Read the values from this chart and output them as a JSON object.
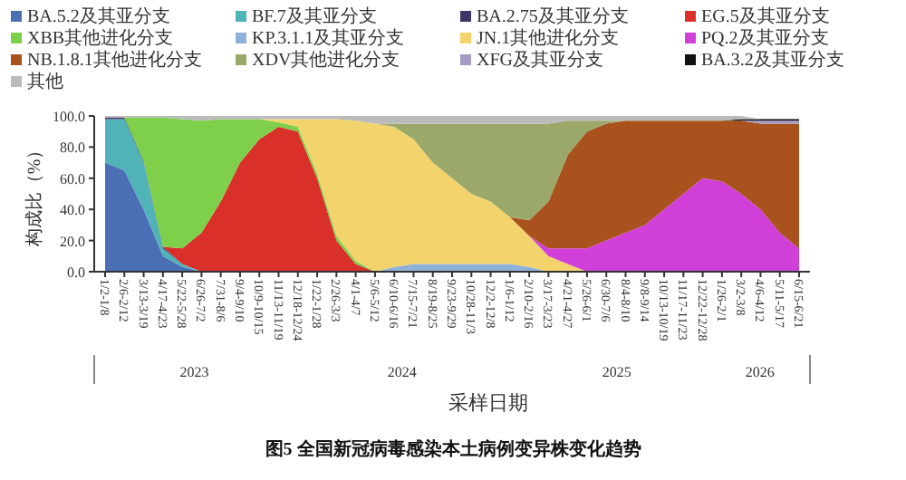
{
  "chart_data": {
    "type": "area",
    "stacked": true,
    "title": "图5 全国新冠病毒感染本土病例变异株变化趋势",
    "xlabel": "采样日期",
    "ylabel": "构成比（%）",
    "categories": [
      "1/2-1/8",
      "2/6-2/12",
      "3/13-3/19",
      "4/17-4/23",
      "5/22-5/28",
      "6/26-7/2",
      "7/31-8/6",
      "9/4-9/10",
      "10/9-10/15",
      "11/13-11/19",
      "12/18-12/24",
      "1/22-1/28",
      "2/26-3/3",
      "4/1-4/7",
      "5/6-5/12",
      "6/10-6/16",
      "7/15-7/21",
      "8/19-8/25",
      "9/23-9/29",
      "10/28-11/3",
      "12/2-12/8",
      "1/6-1/12",
      "2/10-2/16",
      "3/17-3/23",
      "4/21-4/27",
      "5/26-6/1",
      "6/30-7/6",
      "8/4-8/10",
      "9/8-9/14",
      "10/13-10/19",
      "11/17-11/23",
      "12/22-12/28",
      "1/26-2/1",
      "3/2-3/8",
      "4/6-4/12",
      "5/11-5/17",
      "6/15-6/21"
    ],
    "ylim": [
      0,
      100
    ],
    "yticks": [
      {
        "value": 0,
        "label": "0.0"
      },
      {
        "value": 20,
        "label": "20.0"
      },
      {
        "value": 40,
        "label": "40.0"
      },
      {
        "value": 60,
        "label": "60.0"
      },
      {
        "value": 80,
        "label": "80.0"
      },
      {
        "value": 100,
        "label": "100.0"
      }
    ],
    "legend": "top",
    "annotations": [
      "2023",
      "2024",
      "2025",
      "2026"
    ],
    "series": [
      {
        "name": "BA.5.2及其亚分支",
        "color": "#4a6fb5",
        "values": [
          70,
          65,
          40,
          10,
          3,
          0,
          null,
          null,
          null,
          null,
          null,
          null,
          null,
          null,
          null,
          null,
          null,
          null,
          null,
          null,
          null,
          null,
          null,
          null,
          null,
          null,
          null,
          null,
          null,
          null,
          null,
          null,
          null,
          null,
          null,
          null,
          null
        ]
      },
      {
        "name": "BF.7及其亚分支",
        "color": "#4fb3b8",
        "values": [
          28,
          33,
          30,
          5,
          2,
          0,
          null,
          null,
          null,
          null,
          null,
          null,
          null,
          null,
          null,
          null,
          null,
          null,
          null,
          null,
          null,
          null,
          null,
          null,
          null,
          null,
          null,
          null,
          null,
          null,
          null,
          null,
          null,
          null,
          null,
          null,
          null
        ]
      },
      {
        "name": "BA.2.75及其亚分支",
        "color": "#3c3566",
        "values": [
          1,
          1,
          1,
          1,
          0,
          null,
          null,
          null,
          null,
          null,
          null,
          null,
          null,
          null,
          null,
          null,
          null,
          null,
          null,
          null,
          null,
          null,
          null,
          null,
          null,
          null,
          null,
          null,
          null,
          null,
          null,
          null,
          null,
          null,
          null,
          null,
          null
        ]
      },
      {
        "name": "EG.5及其亚分支",
        "color": "#d9302a",
        "values": [
          null,
          null,
          null,
          0,
          10,
          25,
          45,
          70,
          85,
          93,
          90,
          60,
          20,
          5,
          0,
          null,
          null,
          null,
          null,
          null,
          null,
          null,
          null,
          null,
          null,
          null,
          null,
          null,
          null,
          null,
          null,
          null,
          null,
          null,
          null,
          null,
          null
        ]
      },
      {
        "name": "XBB其他进化分支",
        "color": "#7ed04b",
        "values": [
          null,
          0,
          28,
          83,
          83,
          72,
          53,
          28,
          13,
          3,
          3,
          3,
          3,
          2,
          0,
          null,
          null,
          null,
          null,
          null,
          null,
          null,
          null,
          null,
          null,
          null,
          null,
          null,
          null,
          null,
          null,
          null,
          null,
          null,
          null,
          null,
          null
        ]
      },
      {
        "name": "KP.3.1.1及其亚分支",
        "color": "#8fb0d8",
        "values": [
          null,
          null,
          null,
          null,
          null,
          null,
          null,
          null,
          null,
          null,
          null,
          null,
          null,
          null,
          0,
          3,
          5,
          5,
          5,
          5,
          5,
          5,
          3,
          0,
          null,
          null,
          null,
          null,
          null,
          null,
          null,
          null,
          null,
          null,
          null,
          null,
          null
        ]
      },
      {
        "name": "JN.1其他进化分支",
        "color": "#f3d36b",
        "values": [
          null,
          null,
          null,
          null,
          null,
          null,
          null,
          null,
          0,
          2,
          5,
          35,
          75,
          90,
          95,
          90,
          80,
          65,
          55,
          45,
          40,
          30,
          20,
          10,
          5,
          0,
          null,
          null,
          null,
          null,
          null,
          null,
          null,
          null,
          null,
          null,
          null
        ]
      },
      {
        "name": "PQ.2及其亚分支",
        "color": "#d040d8",
        "values": [
          null,
          null,
          null,
          null,
          null,
          null,
          null,
          null,
          null,
          null,
          null,
          null,
          null,
          null,
          null,
          null,
          null,
          null,
          null,
          null,
          null,
          null,
          0,
          5,
          10,
          15,
          20,
          25,
          30,
          40,
          50,
          60,
          58,
          50,
          40,
          25,
          15
        ]
      },
      {
        "name": "NB.1.8.1其他进化分支",
        "color": "#a9521e",
        "values": [
          null,
          null,
          null,
          null,
          null,
          null,
          null,
          null,
          null,
          null,
          null,
          null,
          null,
          null,
          null,
          null,
          null,
          null,
          null,
          null,
          null,
          0,
          10,
          30,
          60,
          75,
          75,
          72,
          67,
          57,
          47,
          37,
          39,
          47,
          55,
          70,
          80
        ]
      },
      {
        "name": "XDV其他进化分支",
        "color": "#9aa86a",
        "values": [
          null,
          null,
          null,
          null,
          null,
          null,
          null,
          null,
          null,
          null,
          null,
          null,
          null,
          null,
          0,
          2,
          10,
          25,
          35,
          45,
          50,
          60,
          62,
          50,
          22,
          7,
          2,
          0,
          null,
          null,
          null,
          null,
          null,
          null,
          null,
          null,
          null
        ]
      },
      {
        "name": "XFG及其亚分支",
        "color": "#a49bc4",
        "values": [
          null,
          null,
          null,
          null,
          null,
          null,
          null,
          null,
          null,
          null,
          null,
          null,
          null,
          null,
          null,
          null,
          null,
          null,
          null,
          null,
          null,
          null,
          null,
          null,
          null,
          null,
          null,
          null,
          null,
          null,
          null,
          null,
          null,
          0,
          2,
          2,
          2
        ]
      },
      {
        "name": "BA.3.2及其亚分支",
        "color": "#111111",
        "values": [
          null,
          null,
          null,
          null,
          null,
          null,
          null,
          null,
          null,
          null,
          null,
          null,
          null,
          null,
          null,
          null,
          null,
          null,
          null,
          null,
          null,
          null,
          null,
          null,
          null,
          null,
          null,
          null,
          null,
          null,
          null,
          null,
          0,
          1,
          1,
          1,
          1
        ]
      },
      {
        "name": "其他",
        "color": "#bbbbbb",
        "values": [
          1,
          1,
          1,
          1,
          2,
          3,
          2,
          2,
          2,
          2,
          2,
          2,
          2,
          3,
          5,
          5,
          5,
          5,
          5,
          5,
          5,
          5,
          5,
          5,
          3,
          3,
          3,
          3,
          3,
          3,
          3,
          3,
          3,
          2,
          0,
          0,
          0
        ]
      }
    ]
  }
}
